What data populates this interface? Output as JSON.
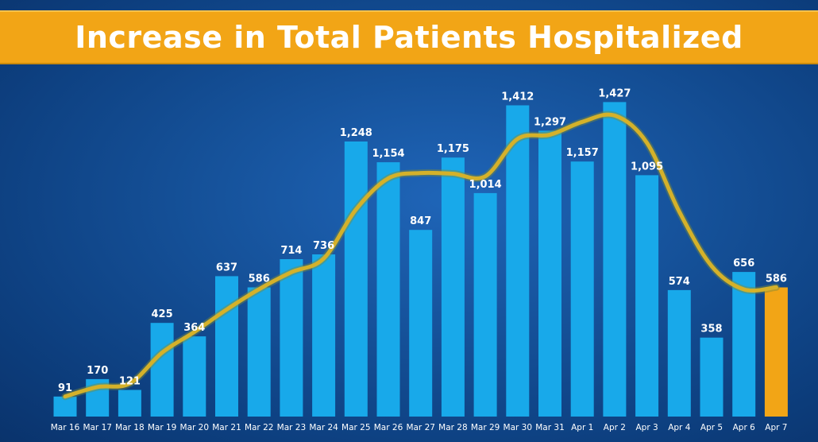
{
  "title": "Increase in Total Patients Hospitalized",
  "colors": {
    "bar": "#18a9ea",
    "highlight_bar": "#f2a516",
    "trend_line": "#d4b12a",
    "title_bar": "#f2a516",
    "background": "#0f4a92"
  },
  "chart_data": {
    "type": "bar",
    "title": "Increase in Total Patients Hospitalized",
    "categories": [
      "Mar 16",
      "Mar 17",
      "Mar 18",
      "Mar 19",
      "Mar 20",
      "Mar 21",
      "Mar 22",
      "Mar 23",
      "Mar 24",
      "Mar 25",
      "Mar 26",
      "Mar 27",
      "Mar 28",
      "Mar 29",
      "Mar 30",
      "Mar 31",
      "Apr 1",
      "Apr 2",
      "Apr 3",
      "Apr 4",
      "Apr 5",
      "Apr 6",
      "Apr 7"
    ],
    "values": [
      91,
      170,
      121,
      425,
      364,
      637,
      586,
      714,
      736,
      1248,
      1154,
      847,
      1175,
      1014,
      1412,
      1297,
      1157,
      1427,
      1095,
      574,
      358,
      656,
      586
    ],
    "data_labels": [
      "91",
      "170",
      "121",
      "425",
      "364",
      "637",
      "586",
      "714",
      "736",
      "1,248",
      "1,154",
      "847",
      "1,175",
      "1,014",
      "1,412",
      "1,297",
      "1,157",
      "1,427",
      "1,095",
      "574",
      "358",
      "656",
      "586"
    ],
    "highlighted_category": "Apr 7",
    "trend_line": {
      "type": "line",
      "values": [
        91,
        134,
        150,
        290,
        384,
        486,
        578,
        655,
        717,
        940,
        1081,
        1105,
        1102,
        1090,
        1260,
        1279,
        1337,
        1366,
        1242,
        930,
        683,
        577,
        587
      ]
    },
    "xlabel": "",
    "ylabel": "",
    "ylim": [
      0,
      1450
    ],
    "grid": false,
    "legend": "none"
  }
}
